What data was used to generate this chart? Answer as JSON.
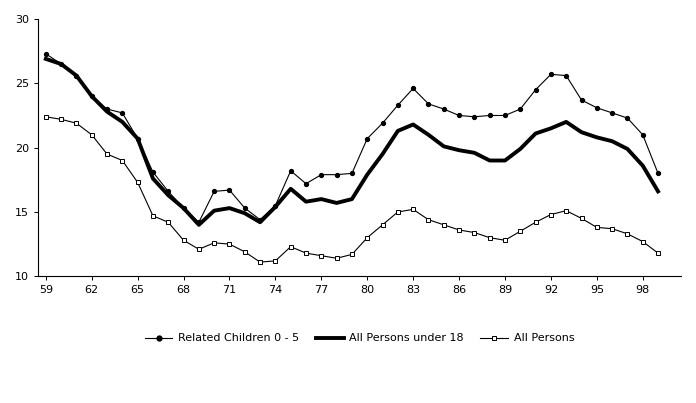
{
  "years": [
    1959,
    1960,
    1961,
    1962,
    1963,
    1964,
    1965,
    1966,
    1967,
    1968,
    1969,
    1970,
    1971,
    1972,
    1973,
    1974,
    1975,
    1976,
    1977,
    1978,
    1979,
    1980,
    1981,
    1982,
    1983,
    1984,
    1985,
    1986,
    1987,
    1988,
    1989,
    1990,
    1991,
    1992,
    1993,
    1994,
    1995,
    1996,
    1997,
    1998,
    1999
  ],
  "related_children_0_5": [
    27.3,
    26.5,
    25.6,
    24.0,
    23.0,
    22.7,
    20.7,
    18.1,
    16.6,
    15.3,
    14.2,
    16.6,
    16.7,
    15.3,
    14.4,
    15.5,
    18.2,
    17.2,
    17.9,
    17.9,
    18.0,
    20.7,
    21.9,
    23.3,
    24.6,
    23.4,
    23.0,
    22.5,
    22.4,
    22.5,
    22.5,
    23.0,
    24.5,
    25.7,
    25.6,
    23.7,
    23.1,
    22.7,
    22.3,
    21.0,
    18.0
  ],
  "all_persons_under_18": [
    26.9,
    26.5,
    25.6,
    24.0,
    22.8,
    22.0,
    20.7,
    17.6,
    16.3,
    15.3,
    14.0,
    15.1,
    15.3,
    14.9,
    14.2,
    15.4,
    16.8,
    15.8,
    16.0,
    15.7,
    16.0,
    17.9,
    19.5,
    21.3,
    21.8,
    21.0,
    20.1,
    19.8,
    19.6,
    19.0,
    19.0,
    19.9,
    21.1,
    21.5,
    22.0,
    21.2,
    20.8,
    20.5,
    19.9,
    18.6,
    16.6
  ],
  "all_persons": [
    22.4,
    22.2,
    21.9,
    21.0,
    19.5,
    19.0,
    17.3,
    14.7,
    14.2,
    12.8,
    12.1,
    12.6,
    12.5,
    11.9,
    11.1,
    11.2,
    12.3,
    11.8,
    11.6,
    11.4,
    11.7,
    13.0,
    14.0,
    15.0,
    15.2,
    14.4,
    14.0,
    13.6,
    13.4,
    13.0,
    12.8,
    13.5,
    14.2,
    14.8,
    15.1,
    14.5,
    13.8,
    13.7,
    13.3,
    12.7,
    11.8
  ],
  "ylim": [
    10,
    30
  ],
  "yticks": [
    10,
    15,
    20,
    25,
    30
  ],
  "xticks": [
    59,
    62,
    65,
    68,
    71,
    74,
    77,
    80,
    83,
    86,
    89,
    92,
    95,
    98
  ],
  "background_color": "#ffffff",
  "line_color": "#000000",
  "legend_labels": [
    "Related Children 0 - 5",
    "All Persons under 18",
    "All Persons"
  ]
}
